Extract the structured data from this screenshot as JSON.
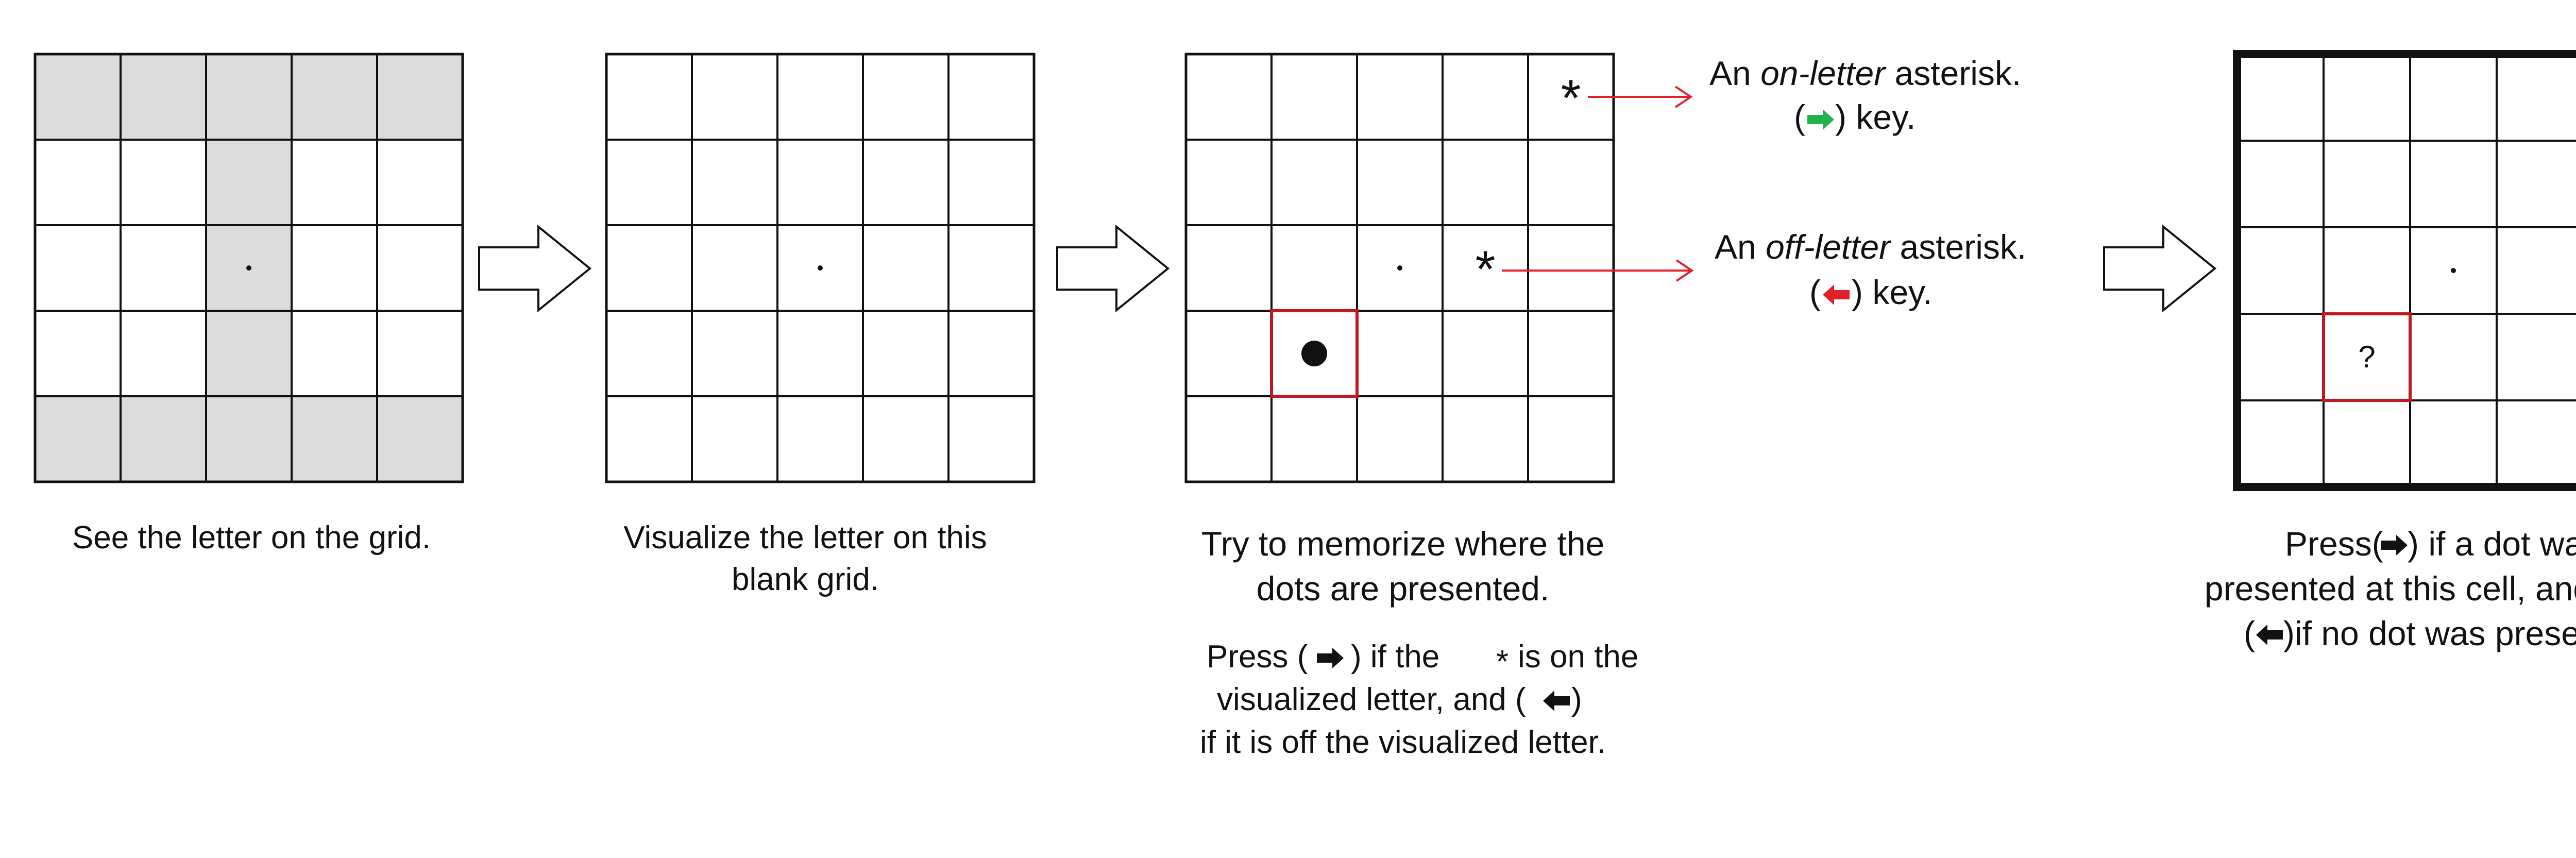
{
  "panels": [
    {
      "caption": [
        "See the letter on the grid."
      ],
      "grid": {
        "rows": 5,
        "cols": 5
      },
      "shaded_cells": [
        [
          0,
          0
        ],
        [
          0,
          1
        ],
        [
          0,
          2
        ],
        [
          0,
          3
        ],
        [
          0,
          4
        ],
        [
          1,
          2
        ],
        [
          2,
          2
        ],
        [
          3,
          2
        ],
        [
          4,
          0
        ],
        [
          4,
          1
        ],
        [
          4,
          2
        ],
        [
          4,
          3
        ],
        [
          4,
          4
        ]
      ],
      "center_dot": true
    },
    {
      "caption": [
        "Visualize the letter on this",
        "blank grid."
      ],
      "grid": {
        "rows": 5,
        "cols": 5
      },
      "center_dot": true
    },
    {
      "caption": [
        "Try to memorize where the",
        "dots are  presented."
      ],
      "instruction": [
        "Press (",
        ") if the ",
        " is on the",
        "visualized letter, and (",
        ")",
        "if it is off the visualized letter."
      ],
      "asterisk_glyph": "*",
      "grid": {
        "rows": 5,
        "cols": 5
      },
      "center_dot": true,
      "asterisks": [
        {
          "row": 0,
          "col": 4,
          "glyph": "*"
        },
        {
          "row": 2,
          "col": 3,
          "glyph": "*"
        }
      ],
      "dot_cell": {
        "row": 3,
        "col": 1
      }
    },
    {
      "caption": [
        "Press(",
        ") if a dot was",
        "presented at this cell, and",
        "(",
        ")if no dot was presented."
      ],
      "grid": {
        "rows": 5,
        "cols": 5
      },
      "center_dot": true,
      "query_cell": {
        "row": 3,
        "col": 1,
        "glyph": "?"
      }
    }
  ],
  "annotations": {
    "on_letter": {
      "prefix": "An ",
      "emph": "on-letter",
      "suffix": " asterisk.",
      "key_open": "(",
      "key_close": ") key.",
      "arrow": "right",
      "color": "#22b14c"
    },
    "off_letter": {
      "prefix": "An ",
      "emph": "off-letter",
      "suffix": " asterisk.",
      "key_open": "(",
      "key_close": ") key.",
      "arrow": "left",
      "color": "#e0202a"
    }
  },
  "colors": {
    "shade": "#dcdcdc",
    "highlight": "#c0181e",
    "pointer": "#e0202a"
  }
}
